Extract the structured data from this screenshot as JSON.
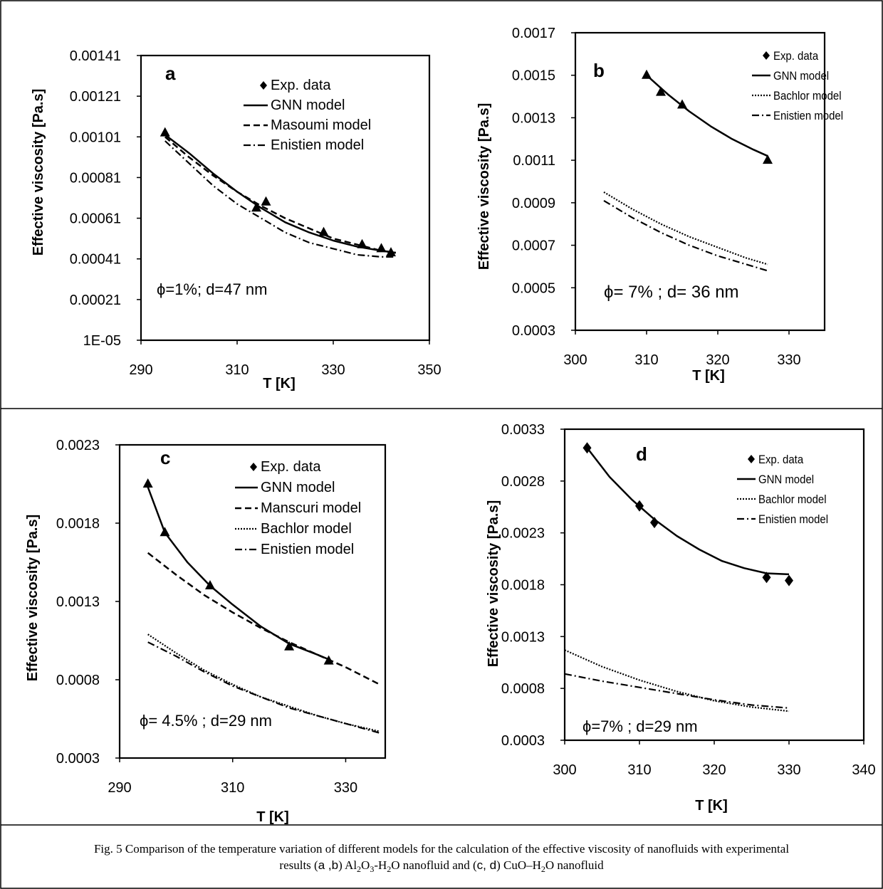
{
  "caption": {
    "line1": "Fig. 5 Comparison of the temperature variation of different models for the calculation of the effective viscosity of nanofluids with experimental",
    "line2_prefix": "results (",
    "ab": "a ,b",
    "mid1": ") Al",
    "sub_2a": "2",
    "O": "O",
    "sub_3": "3",
    "mid2": "-H",
    "sub_2b": "2",
    "mid3": "O nanofluid and (",
    "cd": "c, d",
    "mid4": ") CuO–H",
    "sub_2c": "2",
    "mid5": "O nanofluid"
  },
  "chart_data": [
    {
      "type": "line",
      "panel_label": "a",
      "xlabel": "T [K]",
      "ylabel": "Effective viscosity [Pa.s]",
      "xlim": [
        290,
        350
      ],
      "ylim": [
        1e-05,
        0.00141
      ],
      "xticks": [
        290,
        310,
        330,
        350
      ],
      "yticks": [
        1e-05,
        0.00021,
        0.00041,
        0.00061,
        0.00081,
        0.00101,
        0.00121,
        0.00141
      ],
      "ytick_labels": [
        "1E-05",
        "0.00021",
        "0.00041",
        "0.00061",
        "0.00081",
        "0.00101",
        "0.00121",
        "0.00141"
      ],
      "grid": false,
      "legend_position": "top-center",
      "annotation": "ϕ=1%; d=47 nm",
      "series": [
        {
          "name": "Exp. data",
          "style": "triangle-markers",
          "x": [
            295,
            314,
            316,
            328,
            336,
            340,
            342
          ],
          "y": [
            0.00103,
            0.00066,
            0.00069,
            0.00054,
            0.00048,
            0.00046,
            0.00044
          ]
        },
        {
          "name": "GNN model",
          "style": "solid",
          "x": [
            295,
            300,
            305,
            310,
            315,
            320,
            325,
            330,
            335,
            340,
            343
          ],
          "y": [
            0.00102,
            0.00093,
            0.00083,
            0.00074,
            0.00066,
            0.00059,
            0.00054,
            0.0005,
            0.00047,
            0.00045,
            0.00044
          ]
        },
        {
          "name": "Masoumi model",
          "style": "dashed",
          "x": [
            295,
            300,
            305,
            310,
            315,
            320,
            325,
            330,
            335,
            340,
            343
          ],
          "y": [
            0.00101,
            0.00091,
            0.00082,
            0.00074,
            0.00067,
            0.00061,
            0.00056,
            0.00051,
            0.00048,
            0.00045,
            0.00044
          ]
        },
        {
          "name": "Enistien model",
          "style": "dashdot",
          "x": [
            295,
            300,
            305,
            310,
            315,
            320,
            325,
            330,
            335,
            340,
            343
          ],
          "y": [
            0.00099,
            0.00088,
            0.00077,
            0.00068,
            0.00061,
            0.00054,
            0.00049,
            0.00046,
            0.00043,
            0.00042,
            0.00042
          ]
        }
      ]
    },
    {
      "type": "line",
      "panel_label": "b",
      "xlabel": "T [K]",
      "ylabel": "Effective viscosity [Pa.s]",
      "xlim": [
        300,
        335
      ],
      "ylim": [
        0.0003,
        0.0017
      ],
      "xticks": [
        300,
        310,
        320,
        330
      ],
      "yticks": [
        0.0003,
        0.0005,
        0.0007,
        0.0009,
        0.0011,
        0.0013,
        0.0015,
        0.0017
      ],
      "ytick_labels": [
        "0.0003",
        "0.0005",
        "0.0007",
        "0.0009",
        "0.0011",
        "0.0013",
        "0.0015",
        "0.0017"
      ],
      "grid": false,
      "legend_position": "top-right",
      "annotation": "ϕ= 7% ; d= 36 nm",
      "series": [
        {
          "name": "Exp. data",
          "style": "triangle-markers",
          "x": [
            310,
            312,
            315,
            327
          ],
          "y": [
            0.0015,
            0.00142,
            0.00136,
            0.0011
          ]
        },
        {
          "name": "GNN model",
          "style": "solid",
          "x": [
            310,
            313,
            316,
            319,
            322,
            325,
            327
          ],
          "y": [
            0.0015,
            0.00141,
            0.00133,
            0.00126,
            0.0012,
            0.00115,
            0.00112
          ]
        },
        {
          "name": "Bachlor model",
          "style": "dotted",
          "x": [
            304,
            308,
            312,
            316,
            320,
            324,
            327
          ],
          "y": [
            0.00095,
            0.00087,
            0.0008,
            0.00074,
            0.00069,
            0.00064,
            0.00061
          ]
        },
        {
          "name": "Enistien model",
          "style": "dashdot",
          "x": [
            304,
            308,
            312,
            316,
            320,
            324,
            327
          ],
          "y": [
            0.00091,
            0.00083,
            0.00076,
            0.0007,
            0.00065,
            0.00061,
            0.00058
          ]
        }
      ]
    },
    {
      "type": "line",
      "panel_label": "c",
      "xlabel": "T [K]",
      "ylabel": "Effective viscosity [Pa.s]",
      "xlim": [
        290,
        337
      ],
      "ylim": [
        0.0003,
        0.0023
      ],
      "xticks": [
        290,
        310,
        330
      ],
      "yticks": [
        0.0003,
        0.0008,
        0.0013,
        0.0018,
        0.0023
      ],
      "ytick_labels": [
        "0.0003",
        "0.0008",
        "0.0013",
        "0.0018",
        "0.0023"
      ],
      "grid": false,
      "legend_position": "top-center",
      "annotation": "ϕ= 4.5% ; d=29 nm",
      "series": [
        {
          "name": "Exp. data",
          "style": "triangle-markers",
          "x": [
            295,
            298,
            306,
            320,
            327
          ],
          "y": [
            0.00205,
            0.00174,
            0.0014,
            0.00101,
            0.00092
          ]
        },
        {
          "name": "GNN model",
          "style": "solid",
          "x": [
            295,
            298,
            302,
            306,
            310,
            315,
            320,
            325,
            327
          ],
          "y": [
            0.00203,
            0.00174,
            0.00155,
            0.0014,
            0.00128,
            0.00114,
            0.00103,
            0.00096,
            0.00093
          ]
        },
        {
          "name": "Manscuri model",
          "style": "dashed",
          "x": [
            295,
            300,
            305,
            310,
            315,
            320,
            325,
            330,
            336
          ],
          "y": [
            0.00161,
            0.00147,
            0.00134,
            0.00123,
            0.00113,
            0.00104,
            0.00096,
            0.00088,
            0.00077
          ]
        },
        {
          "name": "Bachlor model",
          "style": "dotted",
          "x": [
            295,
            300,
            305,
            310,
            315,
            320,
            325,
            330,
            336
          ],
          "y": [
            0.00109,
            0.00097,
            0.00086,
            0.00077,
            0.00069,
            0.00063,
            0.00057,
            0.00052,
            0.00047
          ]
        },
        {
          "name": "Enistien model",
          "style": "dashdot",
          "x": [
            295,
            300,
            305,
            310,
            315,
            320,
            325,
            330,
            336
          ],
          "y": [
            0.00104,
            0.00095,
            0.00085,
            0.00076,
            0.00069,
            0.00062,
            0.00057,
            0.00052,
            0.00046
          ]
        }
      ]
    },
    {
      "type": "line",
      "panel_label": "d",
      "xlabel": "T [K]",
      "ylabel": "Effective viscosity [Pa.s]",
      "xlim": [
        300,
        340
      ],
      "ylim": [
        0.0003,
        0.0033
      ],
      "xticks": [
        300,
        310,
        320,
        330,
        340
      ],
      "yticks": [
        0.0003,
        0.0008,
        0.0013,
        0.0018,
        0.0023,
        0.0028,
        0.0033
      ],
      "ytick_labels": [
        "0.0003",
        "0.0008",
        "0.0013",
        "0.0018",
        "0.0023",
        "0.0028",
        "0.0033"
      ],
      "grid": false,
      "legend_position": "top-right",
      "annotation": "ϕ=7% ; d=29 nm",
      "series": [
        {
          "name": "Exp. data",
          "style": "diamond-markers",
          "x": [
            303,
            310,
            312,
            327,
            330
          ],
          "y": [
            0.00312,
            0.00256,
            0.0024,
            0.00187,
            0.00184
          ]
        },
        {
          "name": "GNN model",
          "style": "solid",
          "x": [
            303,
            306,
            309,
            312,
            315,
            318,
            321,
            324,
            327,
            330
          ],
          "y": [
            0.00312,
            0.00284,
            0.00262,
            0.00243,
            0.00227,
            0.00214,
            0.00203,
            0.00196,
            0.00191,
            0.0019
          ]
        },
        {
          "name": "Bachlor model",
          "style": "dotted",
          "x": [
            300,
            305,
            310,
            315,
            320,
            325,
            330
          ],
          "y": [
            0.00117,
            0.00101,
            0.00088,
            0.00077,
            0.00068,
            0.00062,
            0.00058
          ]
        },
        {
          "name": "Enistien model",
          "style": "dashdot",
          "x": [
            300,
            305,
            310,
            315,
            320,
            325,
            330
          ],
          "y": [
            0.00094,
            0.00087,
            0.00081,
            0.00075,
            0.00069,
            0.00064,
            0.00061
          ]
        }
      ]
    }
  ]
}
